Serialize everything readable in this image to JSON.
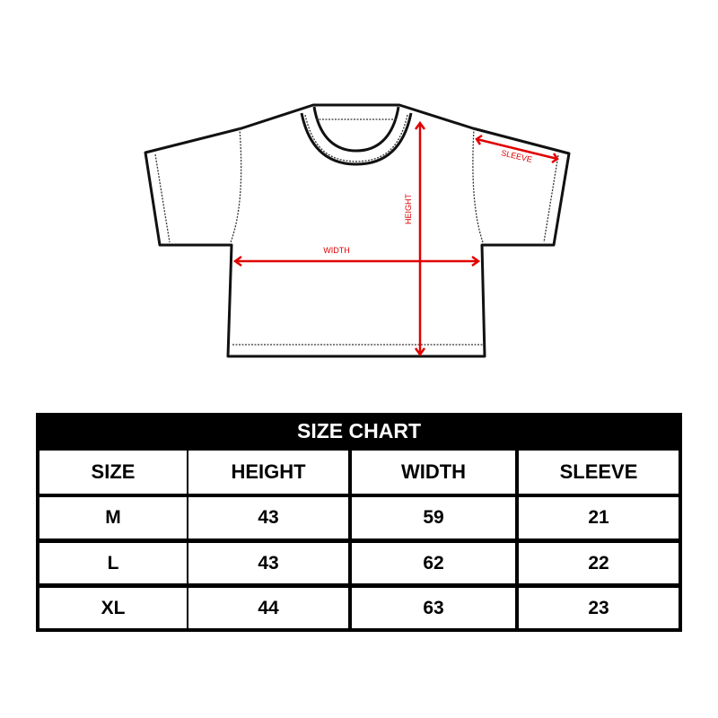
{
  "diagram": {
    "labels": {
      "width": "WIDTH",
      "height": "HEIGHT",
      "sleeve": "SLEEVE"
    },
    "arrow_color": "#e00000"
  },
  "table": {
    "title": "SIZE CHART",
    "headers": [
      "SIZE",
      "HEIGHT",
      "WIDTH",
      "SLEEVE"
    ],
    "rows": [
      [
        "M",
        "43",
        "59",
        "21"
      ],
      [
        "L",
        "43",
        "62",
        "22"
      ],
      [
        "XL",
        "44",
        "63",
        "23"
      ]
    ]
  }
}
